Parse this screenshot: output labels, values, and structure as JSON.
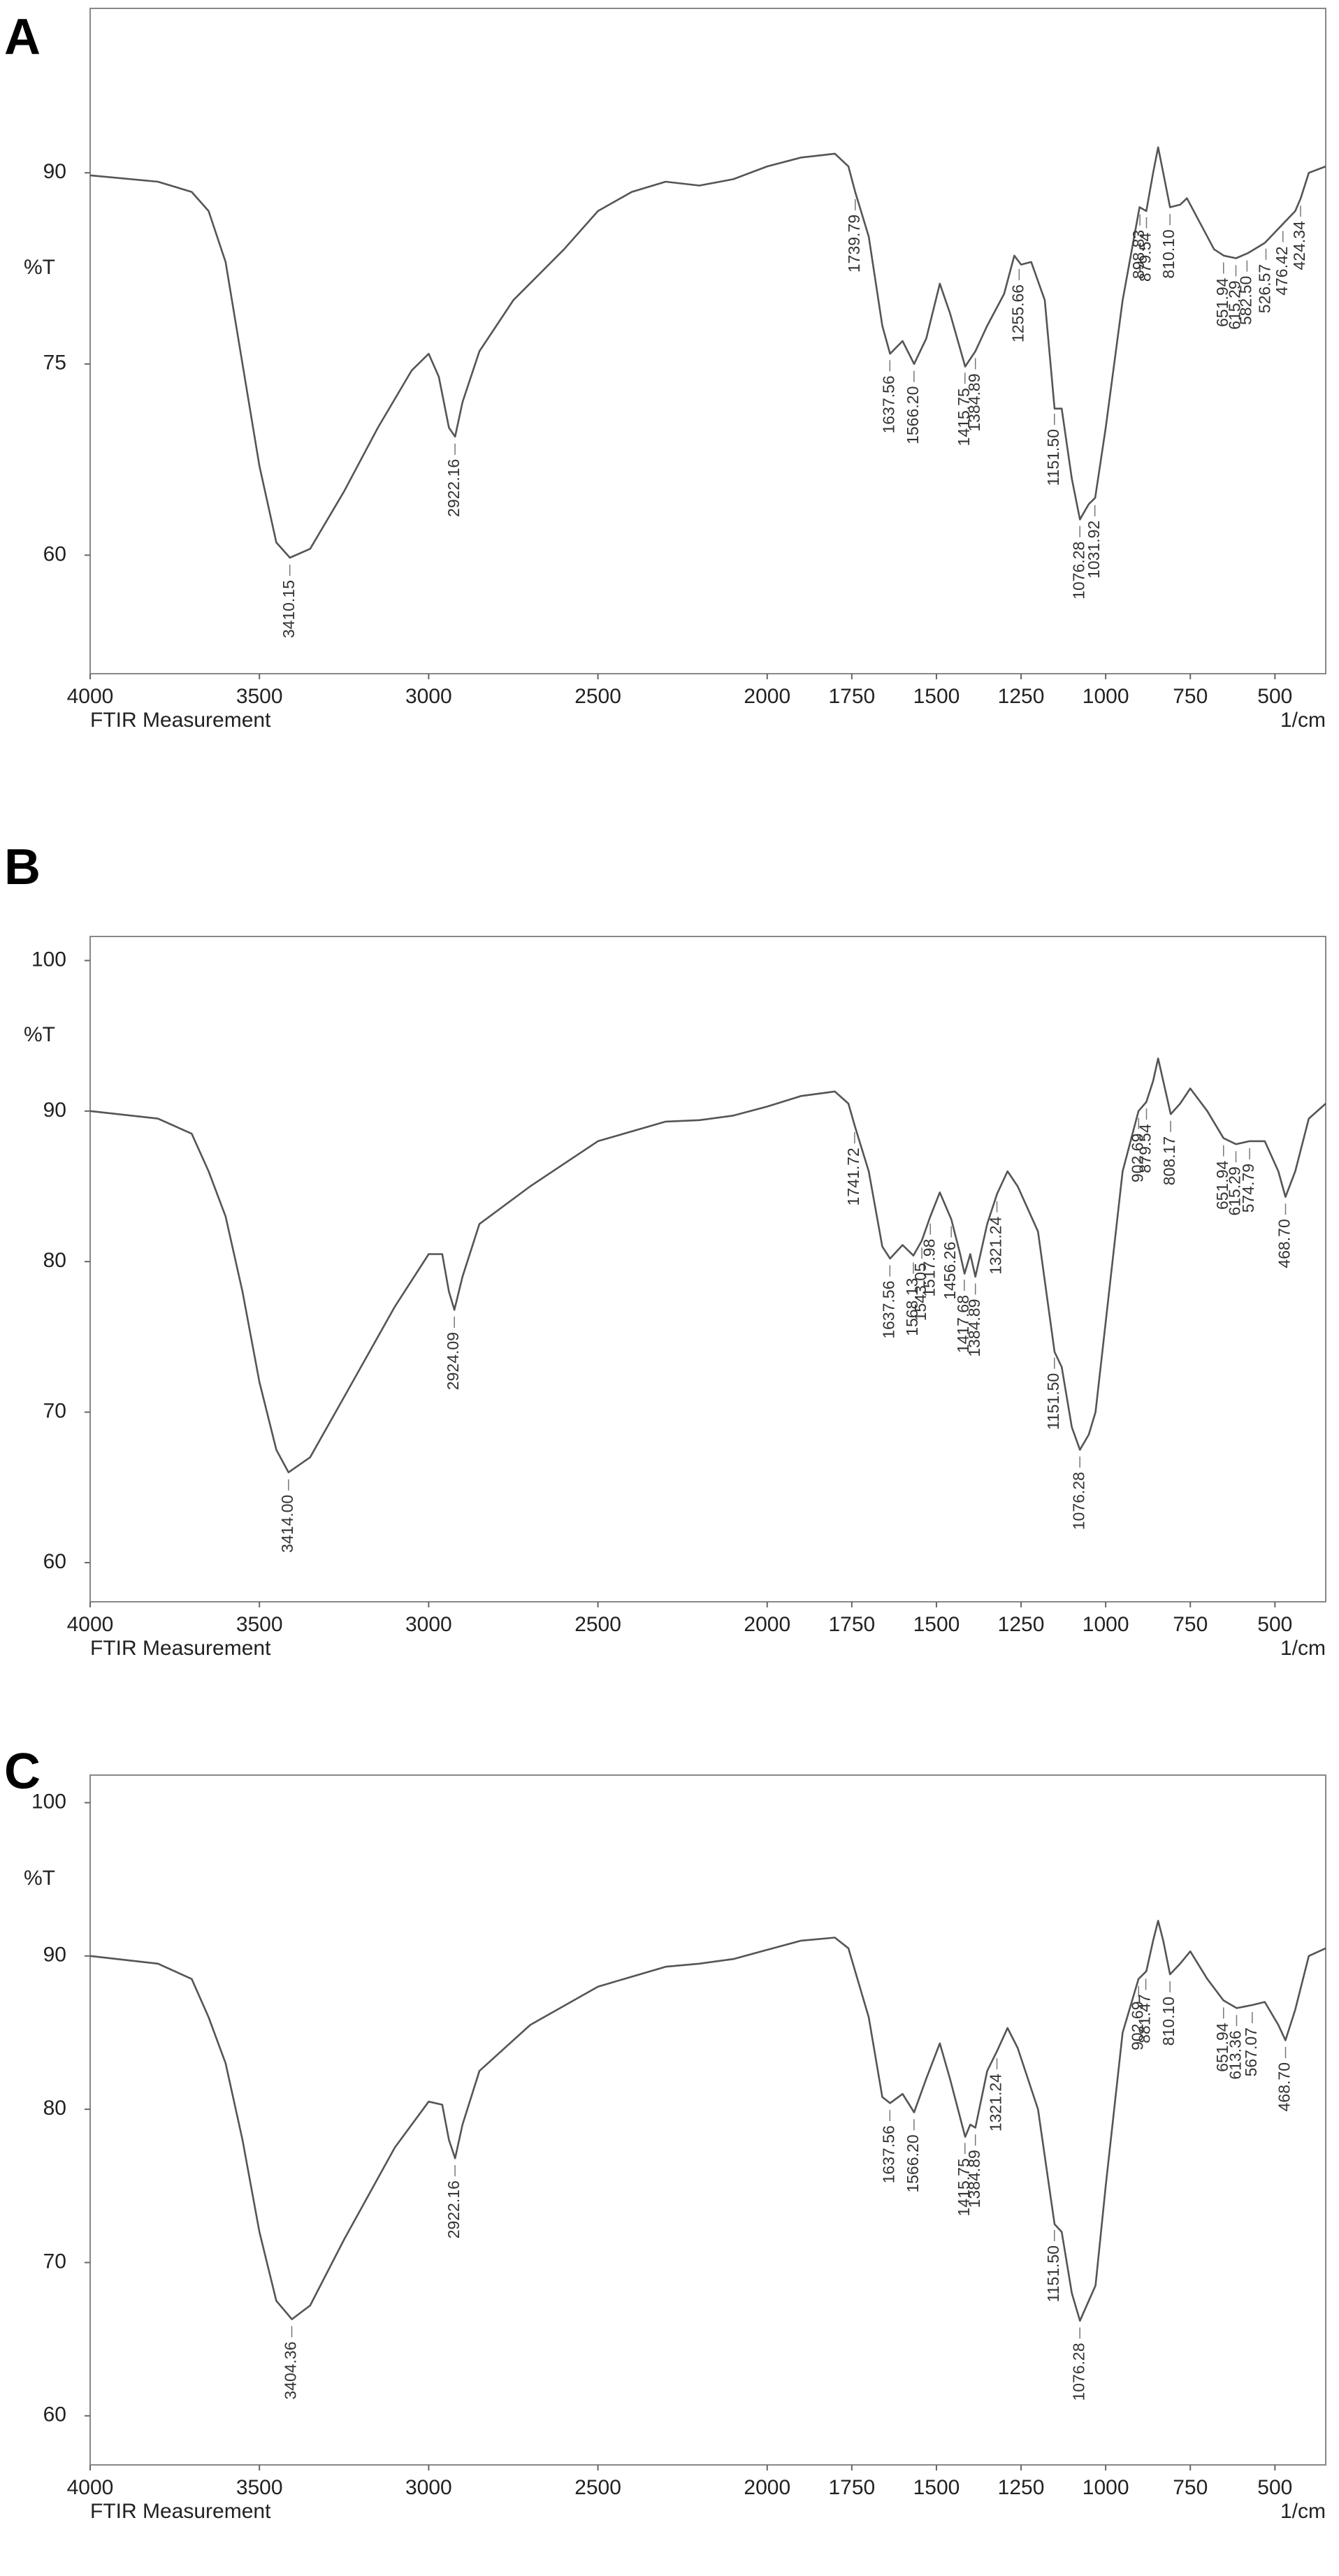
{
  "chart_data": [
    {
      "type": "line",
      "panel_label": "A",
      "y_label": "%T",
      "x_label": "FTIR Measurement",
      "x_unit": "1/cm",
      "xlim": [
        4000,
        350
      ],
      "ylim": [
        50.7,
        102.9
      ],
      "xticks": [
        4000,
        3500,
        3000,
        2500,
        2000,
        1750,
        1500,
        1250,
        1000,
        750,
        500
      ],
      "yticks": [
        60,
        75,
        90
      ],
      "x": [
        4000,
        3800,
        3700,
        3650,
        3600,
        3550,
        3500,
        3450,
        3410,
        3350,
        3250,
        3150,
        3050,
        3000,
        2970,
        2940,
        2922,
        2900,
        2850,
        2750,
        2600,
        2500,
        2400,
        2300,
        2200,
        2100,
        2000,
        1900,
        1800,
        1760,
        1740,
        1700,
        1660,
        1637,
        1600,
        1566,
        1530,
        1490,
        1460,
        1415,
        1400,
        1385,
        1350,
        1300,
        1270,
        1250,
        1220,
        1180,
        1151,
        1130,
        1100,
        1076,
        1050,
        1031,
        1000,
        950,
        900,
        880,
        860,
        845,
        830,
        810,
        780,
        760,
        720,
        680,
        651,
        615,
        580,
        530,
        476,
        440,
        424,
        400,
        350
      ],
      "series": [
        {
          "color": "#555555",
          "values": [
            89.8,
            89.3,
            88.5,
            87,
            83,
            75,
            67,
            61,
            59.8,
            60.5,
            65,
            70,
            74.5,
            75.8,
            74,
            70,
            69.3,
            72,
            76,
            80,
            84,
            87,
            88.5,
            89.3,
            89,
            89.5,
            90.5,
            91.2,
            91.5,
            90.5,
            88.5,
            85,
            78,
            75.8,
            76.8,
            75,
            77,
            81.3,
            79,
            74.8,
            75.4,
            76,
            78,
            80.5,
            83.5,
            82.8,
            83,
            80,
            71.5,
            71.5,
            66,
            62.8,
            64,
            64.5,
            70,
            80,
            87.3,
            87,
            90,
            92,
            90,
            87.3,
            87.5,
            88,
            86,
            84,
            83.5,
            83.3,
            83.7,
            84.5,
            86,
            87,
            88,
            90,
            90.5
          ]
        }
      ],
      "peaks": [
        3410.15,
        2922.16,
        1739.79,
        1637.56,
        1566.2,
        1415.75,
        1384.89,
        1255.66,
        1151.5,
        1076.28,
        1031.92,
        898.83,
        879.54,
        810.1,
        651.94,
        615.29,
        582.5,
        526.57,
        476.42,
        424.34
      ],
      "peak_labels": [
        "3410.15",
        "2922.16",
        "1739.79",
        "1637.56",
        "1566.20",
        "1415.75",
        "1384.89",
        "1255.66",
        "1151.50",
        "1076.28",
        "1031.92",
        "898.83",
        "879.54",
        "810.10",
        "651.94",
        "615.29",
        "582.50",
        "526.57",
        "476.42",
        "424.34"
      ]
    },
    {
      "type": "line",
      "panel_label": "B",
      "y_label": "%T",
      "x_label": "FTIR Measurement",
      "x_unit": "1/cm",
      "xlim": [
        4000,
        350
      ],
      "ylim": [
        57.4,
        101.6
      ],
      "xticks": [
        4000,
        3500,
        3000,
        2500,
        2000,
        1750,
        1500,
        1250,
        1000,
        750,
        500
      ],
      "yticks": [
        60,
        70,
        80,
        90,
        100
      ],
      "x": [
        4000,
        3800,
        3700,
        3650,
        3600,
        3550,
        3500,
        3450,
        3414,
        3350,
        3250,
        3100,
        3000,
        2960,
        2940,
        2924,
        2900,
        2850,
        2700,
        2500,
        2300,
        2200,
        2100,
        2000,
        1900,
        1800,
        1760,
        1741,
        1700,
        1660,
        1637,
        1600,
        1568,
        1543,
        1518,
        1490,
        1456,
        1430,
        1417,
        1400,
        1385,
        1350,
        1321,
        1290,
        1260,
        1200,
        1151,
        1130,
        1100,
        1076,
        1050,
        1030,
        1000,
        950,
        903,
        880,
        860,
        845,
        830,
        808,
        780,
        750,
        700,
        652,
        615,
        575,
        530,
        490,
        469,
        440,
        400,
        350
      ],
      "series": [
        {
          "color": "#555555",
          "values": [
            90,
            89.5,
            88.5,
            86,
            83,
            78,
            72,
            67.5,
            66,
            67,
            71,
            77,
            80.5,
            80.5,
            78,
            76.8,
            79,
            82.5,
            85,
            88,
            89.3,
            89.4,
            89.7,
            90.3,
            91,
            91.3,
            90.5,
            89,
            86,
            81,
            80.2,
            81.1,
            80.4,
            81.4,
            83,
            84.6,
            82.8,
            80.5,
            79.2,
            80.5,
            79,
            82.5,
            84.5,
            86,
            85,
            82,
            74,
            73,
            69,
            67.5,
            68.5,
            70,
            76,
            86,
            90,
            90.6,
            92,
            93.5,
            92,
            89.8,
            90.5,
            91.5,
            90,
            88.2,
            87.8,
            88,
            88,
            86,
            84.3,
            86,
            89.5,
            90.5
          ]
        }
      ],
      "peaks": [
        3414,
        2924.09,
        1741.72,
        1637.56,
        1568.13,
        1543.05,
        1517.98,
        1456.26,
        1417.68,
        1384.89,
        1321.24,
        1151.5,
        1076.28,
        902.69,
        879.54,
        808.17,
        651.94,
        615.29,
        574.79,
        468.7
      ],
      "peak_labels": [
        "3414.00",
        "2924.09",
        "1741.72",
        "1637.56",
        "1568.13",
        "1543.05",
        "1517.98",
        "1456.26",
        "1417.68",
        "1384.89",
        "1321.24",
        "1151.50",
        "1076.28",
        "902.69",
        "879.54",
        "808.17",
        "651.94",
        "615.29",
        "574.79",
        "468.70"
      ]
    },
    {
      "type": "line",
      "panel_label": "C",
      "y_label": "%T",
      "x_label": "FTIR Measurement",
      "x_unit": "1/cm",
      "xlim": [
        4000,
        350
      ],
      "ylim": [
        56.8,
        101.8
      ],
      "xticks": [
        4000,
        3500,
        3000,
        2500,
        2000,
        1750,
        1500,
        1250,
        1000,
        750,
        500
      ],
      "yticks": [
        60,
        70,
        80,
        90,
        100
      ],
      "x": [
        4000,
        3800,
        3700,
        3650,
        3600,
        3550,
        3500,
        3450,
        3404,
        3350,
        3250,
        3100,
        3000,
        2960,
        2940,
        2922,
        2900,
        2850,
        2700,
        2500,
        2300,
        2200,
        2100,
        2000,
        1900,
        1800,
        1760,
        1700,
        1660,
        1637,
        1600,
        1566,
        1530,
        1490,
        1460,
        1415,
        1400,
        1385,
        1350,
        1321,
        1290,
        1260,
        1200,
        1151,
        1130,
        1100,
        1076,
        1050,
        1030,
        1000,
        950,
        903,
        880,
        860,
        845,
        830,
        810,
        780,
        750,
        700,
        652,
        613,
        567,
        530,
        490,
        469,
        440,
        400,
        350
      ],
      "series": [
        {
          "color": "#555555",
          "values": [
            90,
            89.5,
            88.5,
            86,
            83,
            78,
            72,
            67.5,
            66.3,
            67.2,
            71.5,
            77.5,
            80.5,
            80.3,
            78,
            76.8,
            79,
            82.5,
            85.5,
            88,
            89.3,
            89.5,
            89.8,
            90.4,
            91,
            91.2,
            90.5,
            86,
            80.8,
            80.4,
            81,
            79.8,
            82,
            84.3,
            82,
            78.2,
            79,
            78.8,
            82.5,
            83.8,
            85.3,
            84,
            80,
            72.5,
            72,
            68,
            66.2,
            67.5,
            68.5,
            75,
            85,
            88.5,
            89,
            91,
            92.3,
            91,
            88.8,
            89.5,
            90.3,
            88.5,
            87.1,
            86.6,
            86.8,
            87,
            85.5,
            84.5,
            86.5,
            90,
            90.5
          ]
        }
      ],
      "peaks": [
        3404.36,
        2922.16,
        1637.56,
        1566.2,
        1415.75,
        1384.89,
        1321.24,
        1151.5,
        1076.28,
        902.69,
        881.47,
        810.1,
        651.94,
        613.36,
        567.07,
        468.7
      ],
      "peak_labels": [
        "3404.36",
        "2922.16",
        "1637.56",
        "1566.20",
        "1415.75",
        "1384.89",
        "1321.24",
        "1151.50",
        "1076.28",
        "902.69",
        "881.47",
        "810.10",
        "651.94",
        "613.36",
        "567.07",
        "468.70"
      ]
    }
  ]
}
